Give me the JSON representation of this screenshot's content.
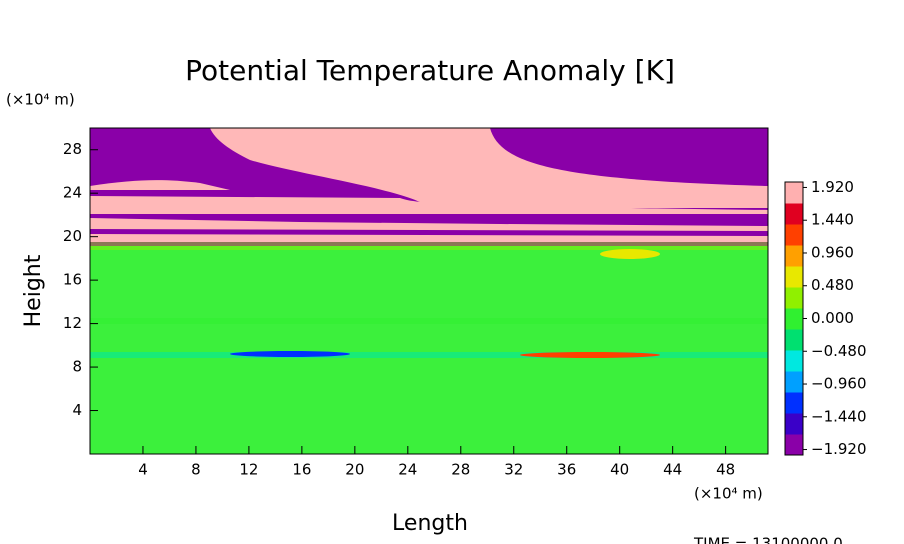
{
  "chart_data": {
    "type": "heatmap",
    "title": "Potential Temperature Anomaly [K]",
    "x_label": "Length",
    "y_label": "Height",
    "x_unit": "(×10⁴ m)",
    "y_unit": "(×10⁴ m)",
    "footer": "TIME = 13100000.0",
    "xlim": [
      0,
      51.2
    ],
    "ylim": [
      0,
      30
    ],
    "xticks": [
      4,
      8,
      12,
      16,
      20,
      24,
      28,
      32,
      36,
      40,
      44,
      48
    ],
    "yticks": [
      4,
      8,
      12,
      16,
      20,
      24,
      28
    ],
    "clim": [
      -2,
      2
    ],
    "cticks": [
      {
        "value": 1.92,
        "label": "1.920"
      },
      {
        "value": 1.44,
        "label": "1.440"
      },
      {
        "value": 0.96,
        "label": "0.960"
      },
      {
        "value": 0.48,
        "label": "0.480"
      },
      {
        "value": 0,
        "label": "0.000"
      },
      {
        "value": -0.48,
        "label": "−0.480"
      },
      {
        "value": -0.96,
        "label": "−0.960"
      },
      {
        "value": -1.44,
        "label": "−1.440"
      },
      {
        "value": -1.92,
        "label": "−1.920"
      }
    ],
    "colormap": [
      "#8a00a8",
      "#3a00c8",
      "#0030ff",
      "#00a0ff",
      "#00e8e0",
      "#00e070",
      "#30f030",
      "#90f000",
      "#e8e800",
      "#ffa000",
      "#ff4000",
      "#e00020",
      "#ffb0b0"
    ]
  }
}
